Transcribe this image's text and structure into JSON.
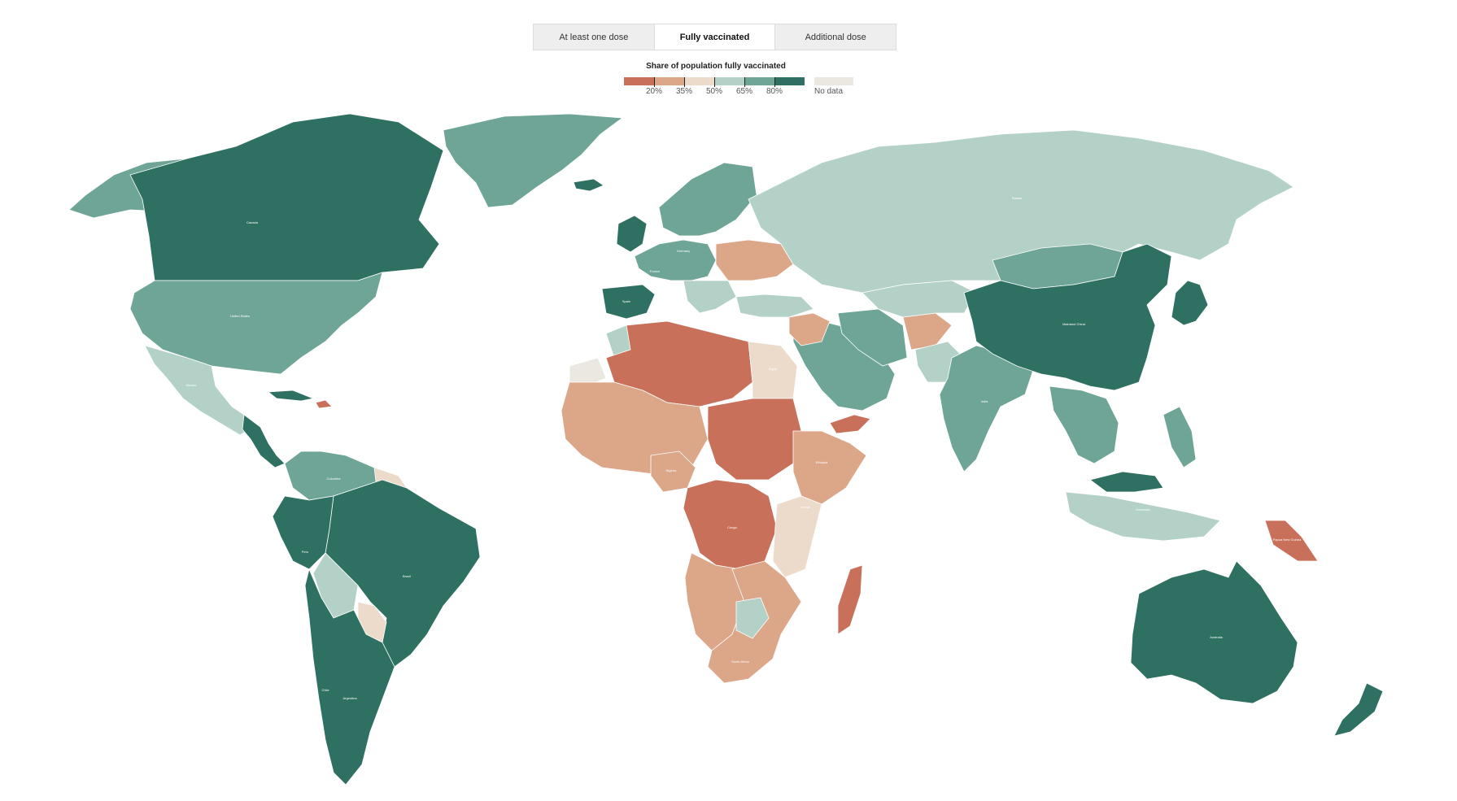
{
  "tabs": [
    {
      "label": "At least one dose"
    },
    {
      "label": "Fully vaccinated"
    },
    {
      "label": "Additional dose"
    }
  ],
  "legend": {
    "title": "Share of population fully vaccinated",
    "ticks": [
      "20%",
      "35%",
      "50%",
      "65%",
      "80%"
    ],
    "no_data": "No data",
    "colors": [
      "#c8705a",
      "#dca688",
      "#ecdacb",
      "#b3d1c6",
      "#6ea596",
      "#2e7062"
    ],
    "no_data_color": "#ebe8e2"
  },
  "countries": [
    {
      "name": "Canada",
      "bin": 5
    },
    {
      "name": "United States",
      "bin": 4
    },
    {
      "name": "Mexico",
      "bin": 3
    },
    {
      "name": "Colombia",
      "bin": 4
    },
    {
      "name": "Brazil",
      "bin": 5
    },
    {
      "name": "Peru",
      "bin": 5
    },
    {
      "name": "Argentina",
      "bin": 5
    },
    {
      "name": "Chile",
      "bin": 5
    },
    {
      "name": "Spain",
      "bin": 5
    },
    {
      "name": "France",
      "bin": 4
    },
    {
      "name": "Germany",
      "bin": 4
    },
    {
      "name": "Russia",
      "bin": 3
    },
    {
      "name": "Egypt",
      "bin": 2
    },
    {
      "name": "Nigeria",
      "bin": 1
    },
    {
      "name": "Ethiopia",
      "bin": 1
    },
    {
      "name": "Kenya",
      "bin": 1
    },
    {
      "name": "Congo",
      "bin": 0
    },
    {
      "name": "South Africa",
      "bin": 1
    },
    {
      "name": "India",
      "bin": 4
    },
    {
      "name": "Mainland China",
      "bin": 5
    },
    {
      "name": "Indonesia",
      "bin": 3
    },
    {
      "name": "Papua New Guinea",
      "bin": 0
    },
    {
      "name": "Australia",
      "bin": 5
    }
  ]
}
